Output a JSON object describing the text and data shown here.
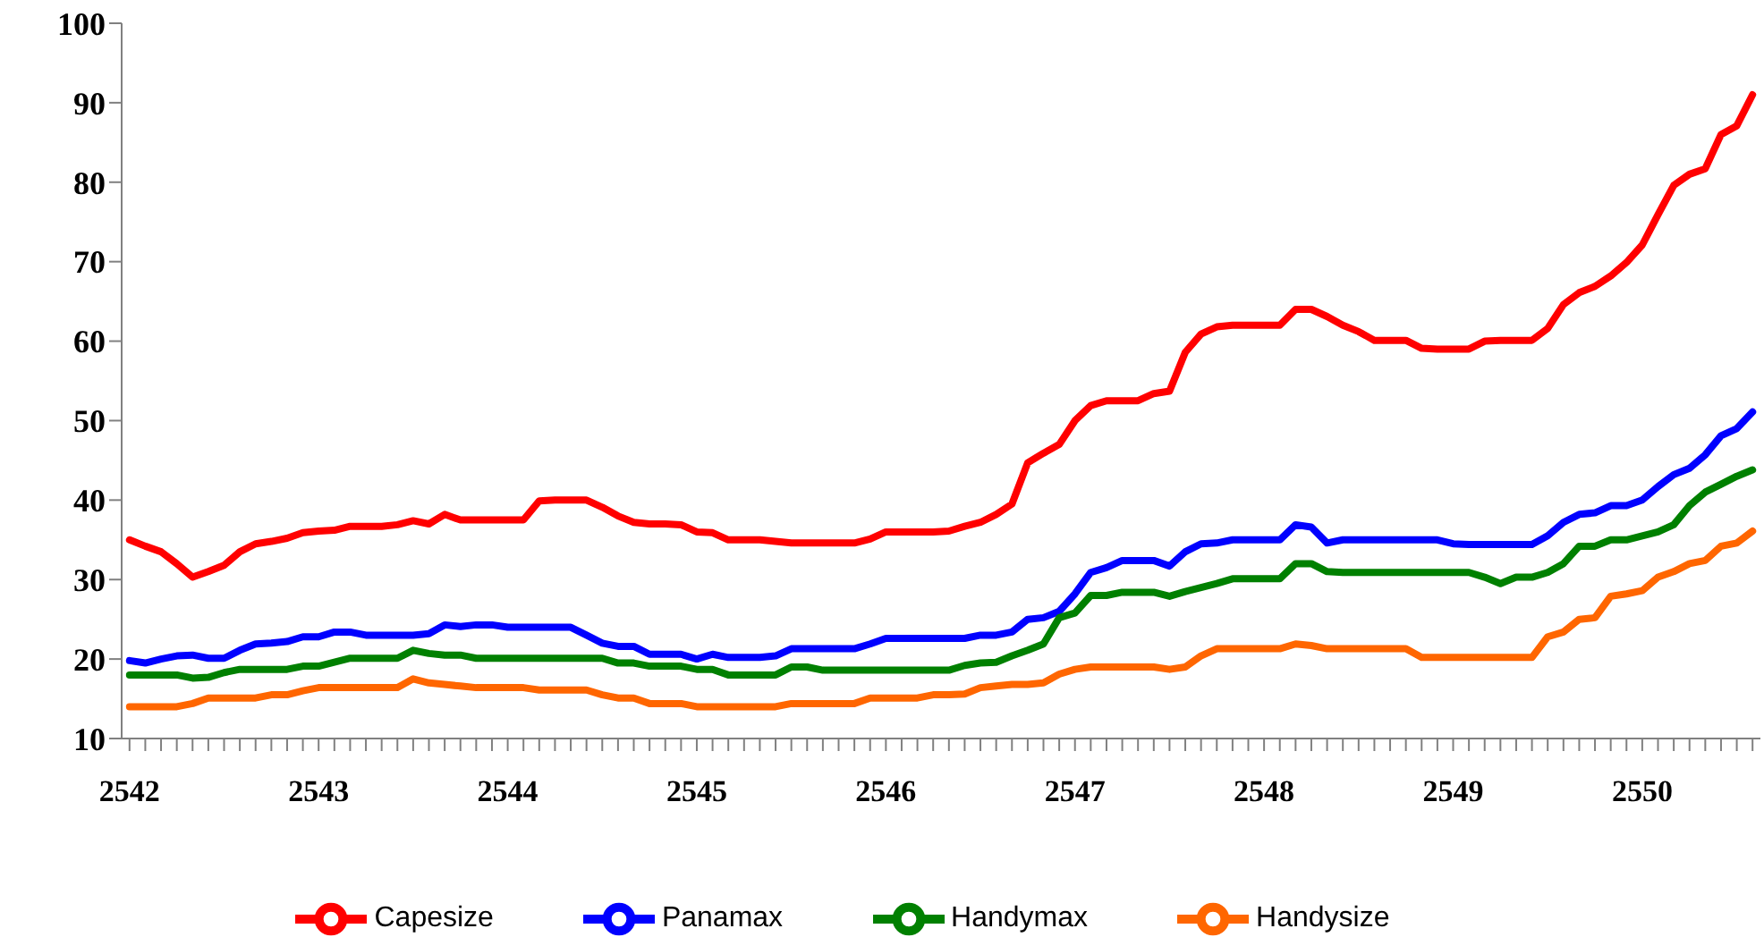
{
  "chart_data": {
    "type": "line",
    "categories": [
      "2542",
      null,
      null,
      null,
      null,
      null,
      null,
      null,
      null,
      null,
      null,
      null,
      "2543",
      null,
      null,
      null,
      null,
      null,
      null,
      null,
      null,
      null,
      null,
      null,
      "2544",
      null,
      null,
      null,
      null,
      null,
      null,
      null,
      null,
      null,
      null,
      null,
      "2545",
      null,
      null,
      null,
      null,
      null,
      null,
      null,
      null,
      null,
      null,
      null,
      "2546",
      null,
      null,
      null,
      null,
      null,
      null,
      null,
      null,
      null,
      null,
      null,
      "2547",
      null,
      null,
      null,
      null,
      null,
      null,
      null,
      null,
      null,
      null,
      null,
      "2548",
      null,
      null,
      null,
      null,
      null,
      null,
      null,
      null,
      null,
      null,
      null,
      "2549",
      null,
      null,
      null,
      null,
      null,
      null,
      null,
      null,
      null,
      null,
      null,
      "2550",
      null,
      null,
      null,
      null,
      null,
      null,
      null
    ],
    "series": [
      {
        "name": "Capesize",
        "color": "#ff0000",
        "values": [
          35,
          34.2,
          33.5,
          32,
          30.3,
          31,
          31.8,
          33.5,
          34.5,
          34.8,
          35.2,
          35.9,
          36.1,
          36.2,
          36.7,
          36.7,
          36.7,
          36.9,
          37.4,
          37,
          38.2,
          37.5,
          37.5,
          37.5,
          37.5,
          37.5,
          39.9,
          40,
          40,
          40,
          39.1,
          38,
          37.2,
          37,
          37,
          36.9,
          36,
          35.9,
          35,
          35,
          35,
          34.8,
          34.6,
          34.6,
          34.6,
          34.6,
          34.6,
          35.1,
          36,
          36,
          36,
          36,
          36.1,
          36.7,
          37.2,
          38.2,
          39.5,
          44.7,
          45.9,
          47,
          50,
          51.9,
          52.5,
          52.5,
          52.5,
          53.4,
          53.7,
          58.6,
          60.9,
          61.8,
          62,
          62,
          62,
          62,
          64,
          64,
          63.1,
          62,
          61.2,
          60.1,
          60.1,
          60.1,
          59.1,
          59,
          59,
          59,
          60,
          60.1,
          60.1,
          60.1,
          61.6,
          64.6,
          66.1,
          66.9,
          68.2,
          69.9,
          72.1,
          75.9,
          79.6,
          81,
          81.7,
          86,
          87.1,
          91
        ]
      },
      {
        "name": "Panamax",
        "color": "#0000ff",
        "values": [
          19.8,
          19.5,
          20,
          20.4,
          20.5,
          20.1,
          20.1,
          21.1,
          21.9,
          22,
          22.2,
          22.8,
          22.8,
          23.4,
          23.4,
          23,
          23,
          23,
          23,
          23.2,
          24.3,
          24.1,
          24.3,
          24.3,
          24,
          24,
          24,
          24,
          24,
          23,
          22,
          21.6,
          21.6,
          20.6,
          20.6,
          20.6,
          20,
          20.6,
          20.2,
          20.2,
          20.2,
          20.4,
          21.3,
          21.3,
          21.3,
          21.3,
          21.3,
          21.9,
          22.6,
          22.6,
          22.6,
          22.6,
          22.6,
          22.6,
          23,
          23,
          23.4,
          25,
          25.2,
          26,
          28.2,
          30.9,
          31.5,
          32.4,
          32.4,
          32.4,
          31.7,
          33.5,
          34.5,
          34.6,
          35,
          35,
          35,
          35,
          36.9,
          36.6,
          34.6,
          35,
          35,
          35,
          35,
          35,
          35,
          35,
          34.5,
          34.4,
          34.4,
          34.4,
          34.4,
          34.4,
          35.5,
          37.2,
          38.2,
          38.4,
          39.3,
          39.3,
          40,
          41.7,
          43.2,
          44,
          45.7,
          48.1,
          49,
          51.1
        ]
      },
      {
        "name": "Handymax",
        "color": "#008000",
        "values": [
          18,
          18,
          18,
          18,
          17.6,
          17.7,
          18.3,
          18.7,
          18.7,
          18.7,
          18.7,
          19.1,
          19.1,
          19.6,
          20.1,
          20.1,
          20.1,
          20.1,
          21.1,
          20.7,
          20.5,
          20.5,
          20.1,
          20.1,
          20.1,
          20.1,
          20.1,
          20.1,
          20.1,
          20.1,
          20.1,
          19.5,
          19.5,
          19.1,
          19.1,
          19.1,
          18.7,
          18.7,
          18,
          18,
          18,
          18,
          19,
          19,
          18.6,
          18.6,
          18.6,
          18.6,
          18.6,
          18.6,
          18.6,
          18.6,
          18.6,
          19.2,
          19.5,
          19.6,
          20.4,
          21.1,
          21.9,
          25.2,
          25.8,
          28,
          28,
          28.4,
          28.4,
          28.4,
          27.9,
          28.5,
          29,
          29.5,
          30.1,
          30.1,
          30.1,
          30.1,
          32,
          32,
          31,
          30.9,
          30.9,
          30.9,
          30.9,
          30.9,
          30.9,
          30.9,
          30.9,
          30.9,
          30.3,
          29.5,
          30.3,
          30.3,
          30.9,
          32,
          34.2,
          34.2,
          35,
          35,
          35.5,
          36,
          36.9,
          39.3,
          41,
          42,
          43,
          43.8
        ]
      },
      {
        "name": "Handysize",
        "color": "#ff6600",
        "values": [
          14,
          14,
          14,
          14,
          14.4,
          15.1,
          15.1,
          15.1,
          15.1,
          15.5,
          15.5,
          16,
          16.4,
          16.4,
          16.4,
          16.4,
          16.4,
          16.4,
          17.5,
          17,
          16.8,
          16.6,
          16.4,
          16.4,
          16.4,
          16.4,
          16.1,
          16.1,
          16.1,
          16.1,
          15.5,
          15.1,
          15.1,
          14.4,
          14.4,
          14.4,
          14,
          14,
          14,
          14,
          14,
          14,
          14.4,
          14.4,
          14.4,
          14.4,
          14.4,
          15.1,
          15.1,
          15.1,
          15.1,
          15.5,
          15.5,
          15.6,
          16.4,
          16.6,
          16.8,
          16.8,
          17,
          18.1,
          18.7,
          19,
          19,
          19,
          19,
          19,
          18.7,
          19,
          20.4,
          21.3,
          21.3,
          21.3,
          21.3,
          21.3,
          21.9,
          21.7,
          21.3,
          21.3,
          21.3,
          21.3,
          21.3,
          21.3,
          20.2,
          20.2,
          20.2,
          20.2,
          20.2,
          20.2,
          20.2,
          20.2,
          22.8,
          23.4,
          25,
          25.2,
          27.9,
          28.2,
          28.6,
          30.3,
          31,
          32,
          32.4,
          34.2,
          34.6,
          36.1
        ]
      }
    ],
    "ylim": [
      10,
      100
    ],
    "yticks": [
      10,
      20,
      30,
      40,
      50,
      60,
      70,
      80,
      90,
      100
    ],
    "grid": false,
    "legend": "bottom",
    "marker": "none",
    "line_style": "solid"
  }
}
